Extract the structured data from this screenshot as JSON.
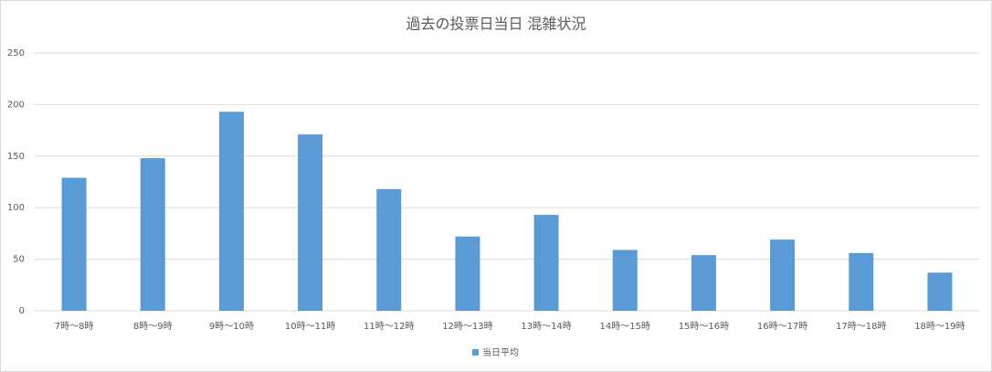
{
  "chart_data": {
    "type": "bar",
    "title": "過去の投票日当日 混雑状況",
    "categories": [
      "7時～8時",
      "8時～9時",
      "9時～10時",
      "10時～11時",
      "11時～12時",
      "12時～13時",
      "13時～14時",
      "14時～15時",
      "15時～16時",
      "16時～17時",
      "17時～18時",
      "18時～19時"
    ],
    "series": [
      {
        "name": "当日平均",
        "color": "#5b9bd5",
        "values": [
          129,
          148,
          193,
          171,
          118,
          72,
          93,
          59,
          54,
          69,
          56,
          37
        ]
      }
    ],
    "ylim": [
      0,
      250
    ],
    "yticks": [
      0,
      50,
      100,
      150,
      200,
      250
    ],
    "grid": true,
    "legend": "bottom"
  }
}
